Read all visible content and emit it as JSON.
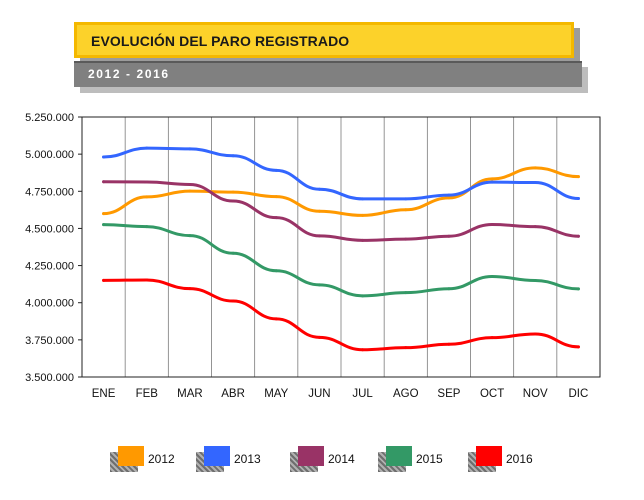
{
  "header": {
    "title": "EVOLUCIÓN DEL PARO REGISTRADO",
    "subtitle": "2012 - 2016"
  },
  "chart_data": {
    "type": "line",
    "categories": [
      "ENE",
      "FEB",
      "MAR",
      "ABR",
      "MAY",
      "JUN",
      "JUL",
      "AGO",
      "SEP",
      "OCT",
      "NOV",
      "DIC"
    ],
    "ylim": [
      3500000,
      5250000
    ],
    "yticks": [
      "3.500.000",
      "3.750.000",
      "4.000.000",
      "4.250.000",
      "4.500.000",
      "4.750.000",
      "5.000.000",
      "5.250.000"
    ],
    "grid": "vertical",
    "legend_position": "bottom",
    "series": [
      {
        "name": "2012",
        "color": "#ff9900",
        "values": [
          4599829,
          4712098,
          4750867,
          4744235,
          4714122,
          4615269,
          4587455,
          4625634,
          4705279,
          4833521,
          4907817,
          4848723
        ]
      },
      {
        "name": "2013",
        "color": "#3366ff",
        "values": [
          4980778,
          5040222,
          5035243,
          4989193,
          4890928,
          4763680,
          4698814,
          4698783,
          4724355,
          4811383,
          4808908,
          4701338
        ]
      },
      {
        "name": "2014",
        "color": "#993366",
        "values": [
          4814435,
          4812486,
          4795866,
          4684301,
          4572385,
          4449701,
          4419860,
          4427930,
          4447650,
          4526204,
          4512153,
          4447711
        ]
      },
      {
        "name": "2015",
        "color": "#339966",
        "values": [
          4525691,
          4512153,
          4451939,
          4333016,
          4215031,
          4120304,
          4046276,
          4067955,
          4094042,
          4176369,
          4149298,
          4093508
        ]
      },
      {
        "name": "2016",
        "color": "#ff0000",
        "values": [
          4150710,
          4152986,
          4094770,
          4011171,
          3891403,
          3767054,
          3683061,
          3697496,
          3720297,
          3764982,
          3789823,
          3702974
        ]
      }
    ]
  }
}
